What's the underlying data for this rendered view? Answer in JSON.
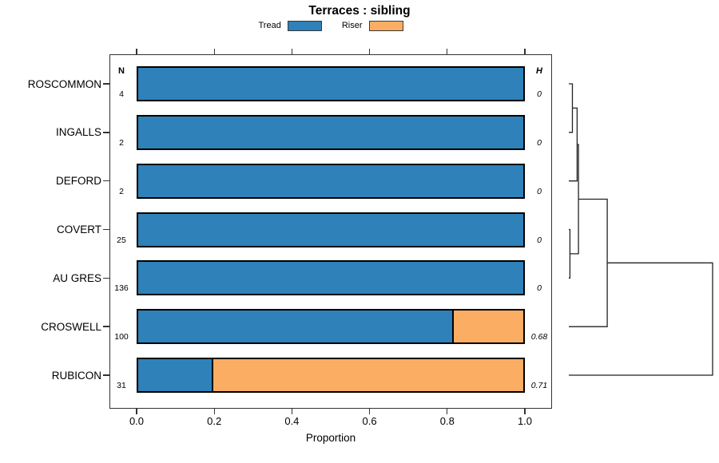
{
  "chart_data": {
    "type": "bar",
    "orientation": "horizontal",
    "stacked": true,
    "title": "Terraces : sibling",
    "x_axis": {
      "label": "Proportion",
      "tick_labels": [
        "0.0",
        "0.2",
        "0.4",
        "0.6",
        "0.8",
        "1.0"
      ],
      "tick_values": [
        0,
        0.2,
        0.4,
        0.6,
        0.8,
        1.0
      ],
      "range": [
        0,
        1
      ]
    },
    "columns": {
      "n_header": "N",
      "h_header": "H"
    },
    "categories": [
      "ROSCOMMON",
      "INGALLS",
      "DEFORD",
      "COVERT",
      "AU GRES",
      "CROSWELL",
      "RUBICON"
    ],
    "n_values": [
      4,
      2,
      2,
      25,
      136,
      100,
      31
    ],
    "h_values": [
      "0",
      "0",
      "0",
      "0",
      "0",
      "0.68",
      "0.71"
    ],
    "series": [
      {
        "name": "Tread",
        "color": "#2E81B9",
        "values": [
          1,
          1,
          1,
          1,
          1,
          0.82,
          0.194
        ]
      },
      {
        "name": "Riser",
        "color": "#FBAD63",
        "values": [
          0,
          0,
          0,
          0,
          0,
          0.18,
          0.806
        ]
      }
    ],
    "dendrogram": {
      "merges": [
        [
          -1,
          -2,
          0.025
        ],
        [
          1,
          -3,
          0.058
        ],
        [
          -4,
          -5,
          0.008
        ],
        [
          2,
          3,
          0.067
        ],
        [
          4,
          -6,
          0.267
        ],
        [
          5,
          -7,
          1.0
        ]
      ]
    },
    "colors": {
      "tread": "#2E81B9",
      "riser": "#FBAD63",
      "bar_border": "#000000",
      "line": "#222222"
    }
  }
}
